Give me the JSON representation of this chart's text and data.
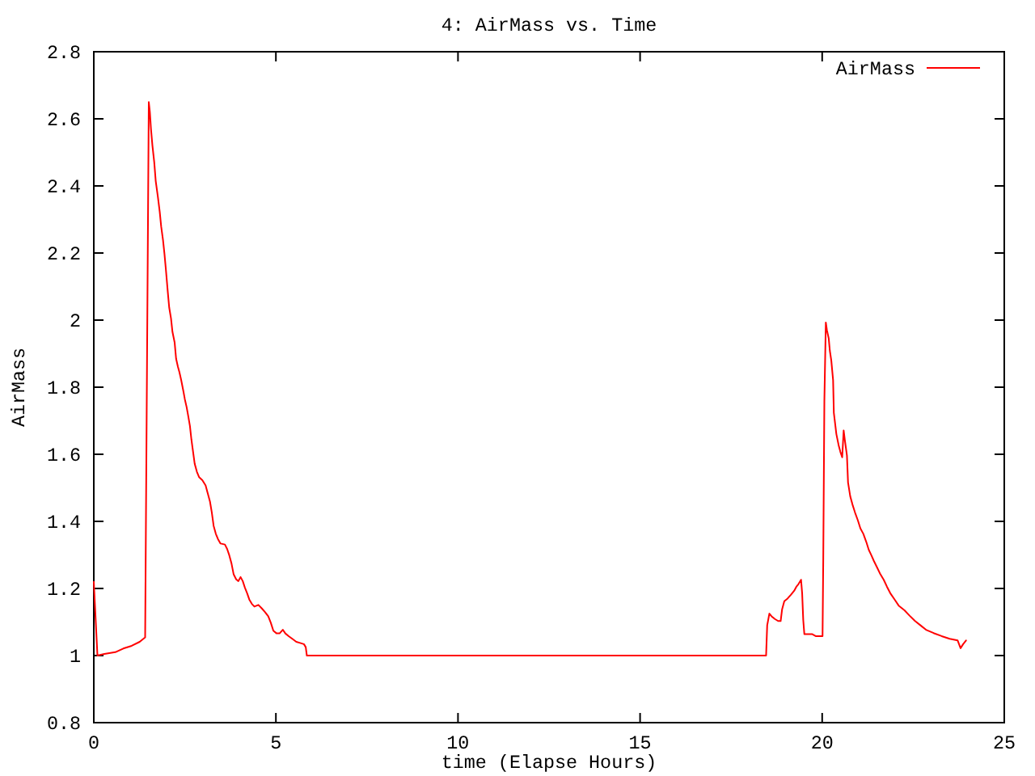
{
  "chart_data": {
    "type": "line",
    "title": "4: AirMass vs. Time",
    "xlabel": "time (Elapse Hours)",
    "ylabel": "AirMass",
    "xlim": [
      0,
      25
    ],
    "xticks": [
      0,
      5,
      10,
      15,
      20,
      25
    ],
    "ylim": [
      0.8,
      2.8
    ],
    "yticks": [
      0.8,
      1,
      1.2,
      1.4,
      1.6,
      1.8,
      2,
      2.2,
      2.4,
      2.6,
      2.8
    ],
    "grid": false,
    "legend": "top right",
    "marker": "none",
    "line_style": "solid",
    "series": [
      {
        "name": "AirMass",
        "color": "#ff0000",
        "x": [
          0,
          0.05,
          0.1,
          0.29,
          0.59,
          0.81,
          1.04,
          1.26,
          1.41,
          1.46,
          1.51,
          1.54,
          1.57,
          1.61,
          1.66,
          1.7,
          1.76,
          1.81,
          1.85,
          1.9,
          1.94,
          1.98,
          2.03,
          2.07,
          2.12,
          2.16,
          2.22,
          2.26,
          2.31,
          2.35,
          2.4,
          2.46,
          2.5,
          2.55,
          2.59,
          2.64,
          2.68,
          2.73,
          2.77,
          2.83,
          2.89,
          2.98,
          3.07,
          3.13,
          3.19,
          3.24,
          3.29,
          3.35,
          3.41,
          3.48,
          3.6,
          3.66,
          3.72,
          3.78,
          3.84,
          3.91,
          3.97,
          4.03,
          4.09,
          4.15,
          4.21,
          4.27,
          4.34,
          4.41,
          4.52,
          4.61,
          4.7,
          4.79,
          4.86,
          4.93,
          5.02,
          5.1,
          5.19,
          5.26,
          5.35,
          5.45,
          5.56,
          5.68,
          5.77,
          5.82,
          5.85,
          18.46,
          18.49,
          18.55,
          18.61,
          18.7,
          18.79,
          18.86,
          18.9,
          18.96,
          19.05,
          19.14,
          19.23,
          19.29,
          19.35,
          19.42,
          19.45,
          19.48,
          19.51,
          19.72,
          19.82,
          20.01,
          20.03,
          20.06,
          20.1,
          20.13,
          20.18,
          20.21,
          20.25,
          20.3,
          20.32,
          20.39,
          20.45,
          20.5,
          20.55,
          20.59,
          20.62,
          20.68,
          20.71,
          20.77,
          20.83,
          20.9,
          20.98,
          21.05,
          21.13,
          21.21,
          21.28,
          21.35,
          21.42,
          21.51,
          21.6,
          21.69,
          21.78,
          21.87,
          21.99,
          22.1,
          22.26,
          22.4,
          22.55,
          22.7,
          22.85,
          23.06,
          23.28,
          23.5,
          23.72,
          23.8,
          23.87,
          23.95
        ],
        "values": [
          1.22,
          1.11,
          1.0,
          1.005,
          1.01,
          1.021,
          1.029,
          1.041,
          1.054,
          1.85,
          2.65,
          2.62,
          2.57,
          2.52,
          2.47,
          2.415,
          2.367,
          2.323,
          2.279,
          2.239,
          2.198,
          2.15,
          2.086,
          2.038,
          2.005,
          1.965,
          1.933,
          1.885,
          1.861,
          1.845,
          1.821,
          1.788,
          1.764,
          1.74,
          1.716,
          1.684,
          1.644,
          1.604,
          1.572,
          1.548,
          1.532,
          1.523,
          1.507,
          1.483,
          1.459,
          1.427,
          1.387,
          1.363,
          1.347,
          1.334,
          1.331,
          1.318,
          1.299,
          1.275,
          1.242,
          1.227,
          1.222,
          1.234,
          1.222,
          1.202,
          1.186,
          1.167,
          1.154,
          1.146,
          1.151,
          1.141,
          1.13,
          1.117,
          1.098,
          1.074,
          1.066,
          1.066,
          1.077,
          1.066,
          1.058,
          1.05,
          1.041,
          1.037,
          1.034,
          1.025,
          1.0,
          1.0,
          1.09,
          1.125,
          1.117,
          1.109,
          1.103,
          1.103,
          1.138,
          1.162,
          1.17,
          1.181,
          1.193,
          1.205,
          1.213,
          1.226,
          1.186,
          1.106,
          1.064,
          1.064,
          1.058,
          1.058,
          1.291,
          1.757,
          1.993,
          1.97,
          1.945,
          1.909,
          1.88,
          1.821,
          1.724,
          1.66,
          1.628,
          1.607,
          1.591,
          1.671,
          1.644,
          1.596,
          1.516,
          1.475,
          1.451,
          1.427,
          1.403,
          1.379,
          1.363,
          1.339,
          1.315,
          1.299,
          1.282,
          1.262,
          1.242,
          1.226,
          1.205,
          1.186,
          1.167,
          1.149,
          1.135,
          1.119,
          1.103,
          1.09,
          1.077,
          1.067,
          1.058,
          1.05,
          1.045,
          1.022,
          1.034,
          1.045
        ]
      }
    ]
  }
}
